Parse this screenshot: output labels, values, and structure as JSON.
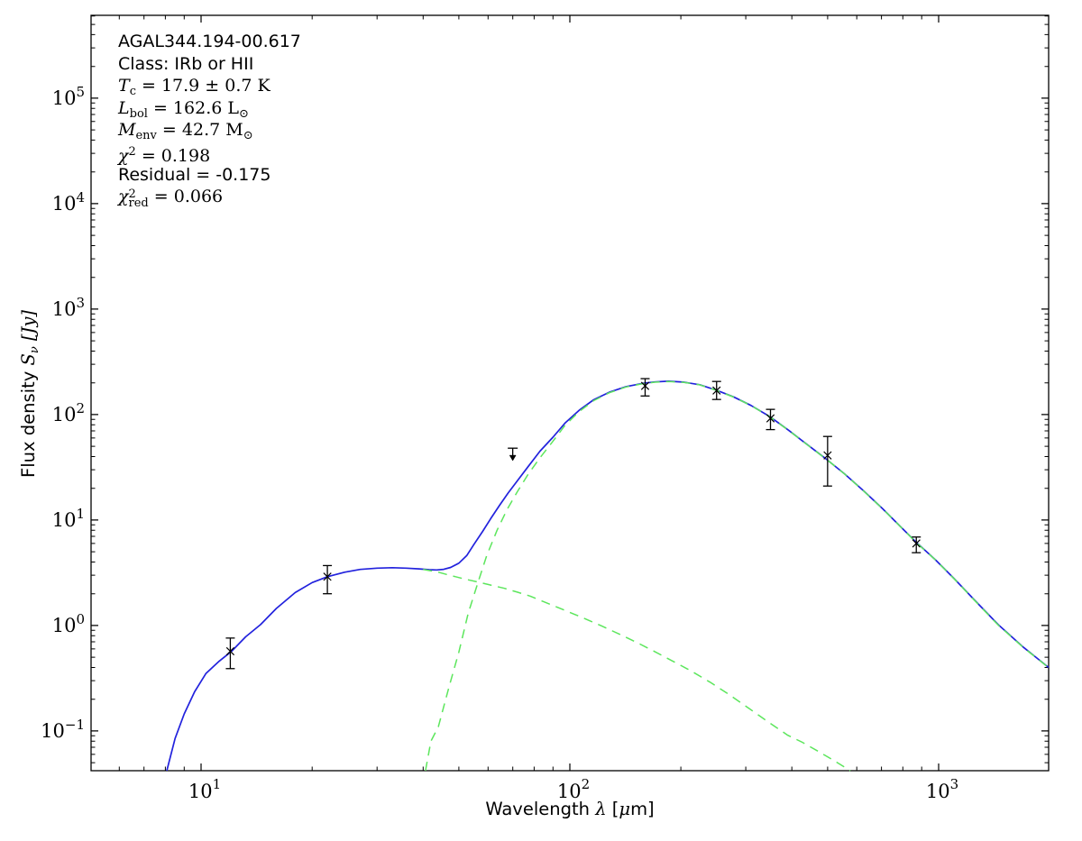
{
  "figure": {
    "background": "#ffffff",
    "frame_color": "#000000",
    "annotation": {
      "lines": [
        {
          "name": "source-name-line",
          "parts": [
            {
              "t": "plain",
              "v": "AGAL344.194-00.617"
            }
          ]
        },
        {
          "name": "class-line",
          "parts": [
            {
              "t": "plain",
              "v": "Class: IRb or HII"
            }
          ]
        },
        {
          "name": "dust-temperature-line",
          "parts": [
            {
              "t": "var",
              "v": "T"
            },
            {
              "t": "sub",
              "v": "c"
            },
            {
              "t": "math",
              "v": " = 17.9 ± 0.7 K"
            }
          ]
        },
        {
          "name": "bolometric-luminosity-line",
          "parts": [
            {
              "t": "var",
              "v": "L"
            },
            {
              "t": "sub",
              "v": "bol"
            },
            {
              "t": "math",
              "v": " = 162.6 L"
            },
            {
              "t": "sub",
              "v": "⊙"
            }
          ]
        },
        {
          "name": "envelope-mass-line",
          "parts": [
            {
              "t": "var",
              "v": "M"
            },
            {
              "t": "sub",
              "v": "env"
            },
            {
              "t": "math",
              "v": " = 42.7 M"
            },
            {
              "t": "sub",
              "v": "⊙"
            }
          ]
        },
        {
          "name": "chi-squared-line",
          "parts": [
            {
              "t": "var",
              "v": "χ"
            },
            {
              "t": "sup",
              "v": "2"
            },
            {
              "t": "math",
              "v": " = 0.198"
            }
          ]
        },
        {
          "name": "residual-line",
          "parts": [
            {
              "t": "plain",
              "v": "Residual = -0.175"
            }
          ]
        },
        {
          "name": "reduced-chi-squared-line",
          "parts": [
            {
              "t": "var",
              "v": "χ"
            },
            {
              "t": "stack",
              "sup": "2",
              "sub": "red"
            },
            {
              "t": "math",
              "v": " = 0.066"
            }
          ]
        }
      ]
    },
    "x_axis_label_parts": [
      {
        "t": "plain",
        "v": "Wavelength "
      },
      {
        "t": "var",
        "v": "λ"
      },
      {
        "t": "plain",
        "v": " ["
      },
      {
        "t": "var",
        "v": "μ"
      },
      {
        "t": "plain",
        "v": "m]"
      }
    ],
    "y_axis_label_parts": [
      {
        "t": "plain",
        "v": "Flux density "
      },
      {
        "t": "var",
        "v": "S"
      },
      {
        "t": "subi",
        "v": "ν"
      },
      {
        "t": "var",
        "v": " [Jy]"
      }
    ]
  },
  "chart_data": {
    "type": "line",
    "title": "AGAL344.194-00.617",
    "xlabel": "Wavelength λ [μm]",
    "ylabel": "Flux density Sν [Jy]",
    "xscale": "log",
    "yscale": "log",
    "xlim": [
      5.03,
      1988
    ],
    "ylim": [
      0.042,
      610000
    ],
    "grid": false,
    "legend": "none",
    "x_major_tick_exponents": [
      1,
      2,
      3
    ],
    "y_major_tick_exponents": [
      -1,
      0,
      1,
      2,
      3,
      4,
      5
    ],
    "tick_label_base": "10",
    "series": [
      {
        "name": "total-sed-fit",
        "style": "solid",
        "color": "#2222dd",
        "width": 1.7,
        "points": [
          [
            8.07,
            0.042
          ],
          [
            8.5,
            0.085
          ],
          [
            9.0,
            0.145
          ],
          [
            9.6,
            0.235
          ],
          [
            10.3,
            0.35
          ],
          [
            11.2,
            0.46
          ],
          [
            12.1,
            0.57
          ],
          [
            13.2,
            0.78
          ],
          [
            14.5,
            1.02
          ],
          [
            16,
            1.45
          ],
          [
            18,
            2.05
          ],
          [
            20,
            2.55
          ],
          [
            22,
            2.9
          ],
          [
            24.5,
            3.2
          ],
          [
            27,
            3.4
          ],
          [
            30,
            3.5
          ],
          [
            33,
            3.53
          ],
          [
            36,
            3.5
          ],
          [
            39,
            3.44
          ],
          [
            41.5,
            3.38
          ],
          [
            43.5,
            3.36
          ],
          [
            45.5,
            3.41
          ],
          [
            47.5,
            3.55
          ],
          [
            50,
            3.9
          ],
          [
            52.5,
            4.6
          ],
          [
            55,
            5.9
          ],
          [
            58,
            7.8
          ],
          [
            61,
            10.3
          ],
          [
            64.5,
            13.8
          ],
          [
            68,
            18
          ],
          [
            72,
            23.5
          ],
          [
            77,
            32
          ],
          [
            83,
            45
          ],
          [
            90,
            61
          ],
          [
            97,
            83
          ],
          [
            106,
            110
          ],
          [
            116,
            138
          ],
          [
            128,
            163
          ],
          [
            142,
            184
          ],
          [
            157,
            197
          ],
          [
            170,
            204
          ],
          [
            185,
            207
          ],
          [
            203,
            203
          ],
          [
            225,
            192
          ],
          [
            250,
            170
          ],
          [
            278,
            147
          ],
          [
            310,
            122
          ],
          [
            348,
            96
          ],
          [
            392,
            71
          ],
          [
            440,
            52
          ],
          [
            495,
            38
          ],
          [
            555,
            27.5
          ],
          [
            625,
            19
          ],
          [
            705,
            12.8
          ],
          [
            790,
            8.6
          ],
          [
            872,
            6.1
          ],
          [
            980,
            4.2
          ],
          [
            1100,
            2.8
          ],
          [
            1250,
            1.75
          ],
          [
            1450,
            1.02
          ],
          [
            1700,
            0.62
          ],
          [
            1988,
            0.4
          ]
        ]
      },
      {
        "name": "cold-greybody-component",
        "style": "dashed",
        "color": "#5ce65c",
        "width": 1.5,
        "points": [
          [
            40.6,
            0.042
          ],
          [
            42,
            0.08
          ],
          [
            44,
            0.11
          ],
          [
            47,
            0.26
          ],
          [
            50,
            0.56
          ],
          [
            53,
            1.3
          ],
          [
            56.3,
            2.54
          ],
          [
            59.5,
            4.6
          ],
          [
            63.5,
            8.0
          ],
          [
            67.5,
            12.5
          ],
          [
            72,
            18.5
          ],
          [
            77,
            27
          ],
          [
            83,
            39
          ],
          [
            90,
            56
          ],
          [
            97,
            79
          ],
          [
            106,
            107
          ],
          [
            116,
            135.5
          ],
          [
            128,
            161
          ],
          [
            142,
            182.5
          ],
          [
            157,
            195.5
          ],
          [
            170,
            202.8
          ],
          [
            185,
            206
          ],
          [
            203,
            202.2
          ],
          [
            225,
            191.3
          ],
          [
            250,
            169.5
          ],
          [
            278,
            146.6
          ],
          [
            310,
            121.7
          ],
          [
            348,
            95.7
          ],
          [
            392,
            70.85
          ],
          [
            440,
            51.9
          ],
          [
            495,
            37.9
          ],
          [
            555,
            27.45
          ],
          [
            625,
            18.96
          ],
          [
            705,
            12.77
          ],
          [
            790,
            8.58
          ],
          [
            872,
            6.08
          ],
          [
            980,
            4.19
          ],
          [
            1100,
            2.79
          ],
          [
            1250,
            1.74
          ],
          [
            1450,
            1.01
          ],
          [
            1700,
            0.617
          ],
          [
            1988,
            0.398
          ]
        ]
      },
      {
        "name": "warm-component",
        "style": "dashed",
        "color": "#5ce65c",
        "width": 1.5,
        "points": [
          [
            40,
            3.4
          ],
          [
            42,
            3.3
          ],
          [
            44,
            3.2
          ],
          [
            46.2,
            3.05
          ],
          [
            49,
            2.9
          ],
          [
            52,
            2.75
          ],
          [
            56,
            2.6
          ],
          [
            60,
            2.45
          ],
          [
            66.5,
            2.25
          ],
          [
            72,
            2.07
          ],
          [
            78,
            1.9
          ],
          [
            85,
            1.68
          ],
          [
            92,
            1.5
          ],
          [
            100,
            1.33
          ],
          [
            110,
            1.16
          ],
          [
            122,
            0.99
          ],
          [
            137,
            0.82
          ],
          [
            152,
            0.69
          ],
          [
            170,
            0.565
          ],
          [
            190,
            0.46
          ],
          [
            212,
            0.375
          ],
          [
            240,
            0.29
          ],
          [
            270,
            0.222
          ],
          [
            305,
            0.165
          ],
          [
            345,
            0.122
          ],
          [
            390,
            0.091
          ],
          [
            427,
            0.078
          ],
          [
            470,
            0.0645
          ],
          [
            520,
            0.0525
          ],
          [
            576,
            0.042
          ]
        ]
      }
    ],
    "data_points": [
      {
        "wavelength_um": 12,
        "flux_jy": 0.57,
        "flux_hi": 0.76,
        "flux_lo": 0.39
      },
      {
        "wavelength_um": 22,
        "flux_jy": 2.9,
        "flux_hi": 3.7,
        "flux_lo": 2.0
      },
      {
        "wavelength_um": 70,
        "flux_jy": 48,
        "upper_limit": true,
        "arrow_to": 38
      },
      {
        "wavelength_um": 160,
        "flux_jy": 187,
        "flux_hi": 219,
        "flux_lo": 150
      },
      {
        "wavelength_um": 250,
        "flux_jy": 169,
        "flux_hi": 206,
        "flux_lo": 139
      },
      {
        "wavelength_um": 350,
        "flux_jy": 92,
        "flux_hi": 112,
        "flux_lo": 72
      },
      {
        "wavelength_um": 500,
        "flux_jy": 41,
        "flux_hi": 62,
        "flux_lo": 21
      },
      {
        "wavelength_um": 870,
        "flux_jy": 6.0,
        "flux_hi": 6.9,
        "flux_lo": 4.9
      }
    ],
    "fit_parameters": {
      "source": "AGAL344.194-00.617",
      "class": "IRb or HII",
      "T_c": "17.9 ± 0.7 K",
      "L_bol": "162.6 L⊙",
      "M_env": "42.7 M⊙",
      "chi2": "0.198",
      "residual": "-0.175",
      "chi2_red": "0.066"
    },
    "marker": {
      "shape": "x",
      "color": "#000000"
    }
  }
}
